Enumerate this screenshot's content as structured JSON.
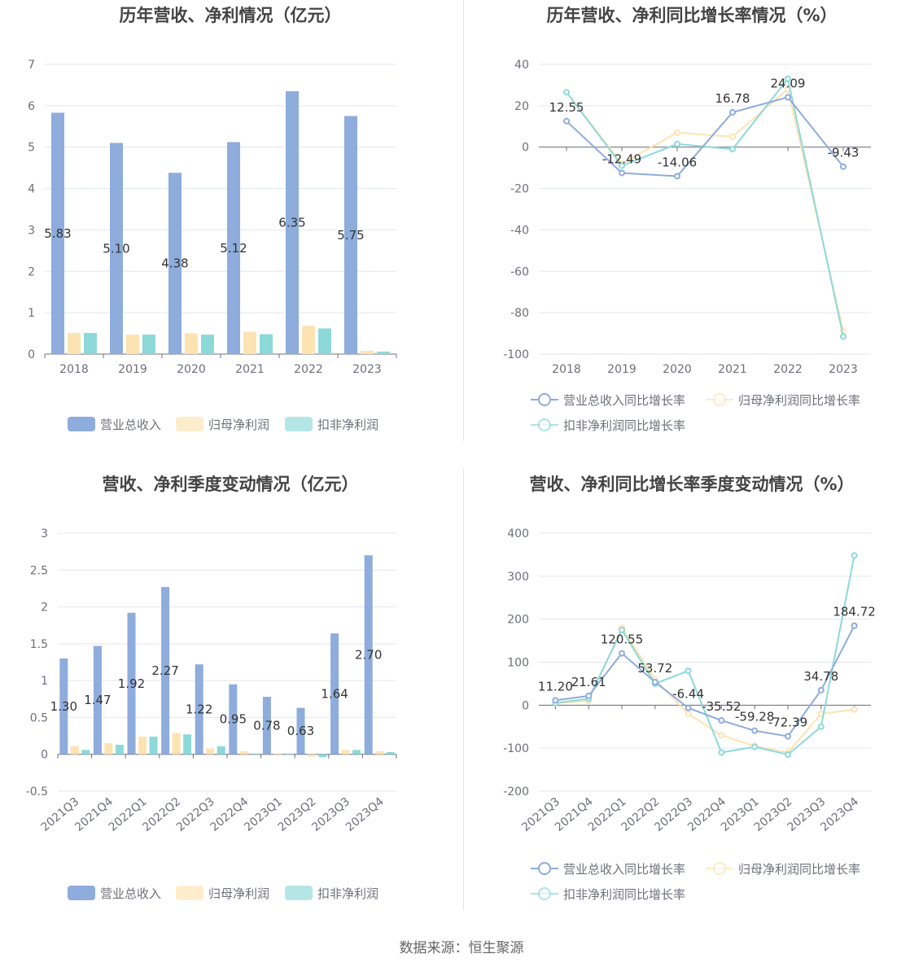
{
  "source": "数据来源：恒生聚源",
  "colors": {
    "revenue": "#8eacdc",
    "net_profit": "#fde3b2",
    "deducted_net_profit": "#8dd9d9",
    "axis_text": "#6e7079",
    "title": "#444444",
    "grid": "#e0e6f1"
  },
  "chart_data": [
    {
      "type": "bar",
      "title": "历年营收、净利情况（亿元）",
      "categories": [
        "2018",
        "2019",
        "2020",
        "2021",
        "2022",
        "2023"
      ],
      "ylim": [
        0,
        7
      ],
      "yticks": [
        0,
        1,
        2,
        3,
        4,
        5,
        6,
        7
      ],
      "series": [
        {
          "name": "营业总收入",
          "values": [
            5.83,
            5.1,
            4.38,
            5.12,
            6.35,
            5.75
          ],
          "labels": [
            "5.83",
            "5.10",
            "4.38",
            "5.12",
            "6.35",
            "5.75"
          ]
        },
        {
          "name": "归母净利润",
          "values": [
            0.51,
            0.47,
            0.5,
            0.54,
            0.68,
            0.08
          ]
        },
        {
          "name": "扣非净利润",
          "values": [
            0.51,
            0.47,
            0.47,
            0.48,
            0.62,
            0.06
          ]
        }
      ],
      "legend": "bottom"
    },
    {
      "type": "line",
      "title": "历年营收、净利同比增长率情况（%）",
      "categories": [
        "2018",
        "2019",
        "2020",
        "2021",
        "2022",
        "2023"
      ],
      "ylim": [
        -100,
        40
      ],
      "yticks": [
        -100,
        -80,
        -60,
        -40,
        -20,
        0,
        20,
        40
      ],
      "series": [
        {
          "name": "营业总收入同比增长率",
          "values": [
            12.55,
            -12.49,
            -14.06,
            16.78,
            24.09,
            -9.43
          ],
          "labels": [
            "12.55",
            "-12.49",
            "-14.06",
            "16.78",
            "24.09",
            "-9.43"
          ]
        },
        {
          "name": "归母净利润同比增长率",
          "values": [
            26.5,
            -8.0,
            7.0,
            5.0,
            28.0,
            -89.0
          ]
        },
        {
          "name": "扣非净利润同比增长率",
          "values": [
            26.5,
            -9.0,
            1.5,
            -1.0,
            33.0,
            -91.5
          ]
        }
      ],
      "legend": "bottom"
    },
    {
      "type": "bar",
      "title": "营收、净利季度变动情况（亿元）",
      "categories": [
        "2021Q3",
        "2021Q4",
        "2022Q1",
        "2022Q2",
        "2022Q3",
        "2022Q4",
        "2023Q1",
        "2023Q2",
        "2023Q3",
        "2023Q4"
      ],
      "ylim": [
        -0.5,
        3
      ],
      "yticks": [
        -0.5,
        0,
        0.5,
        1,
        1.5,
        2,
        2.5,
        3
      ],
      "series": [
        {
          "name": "营业总收入",
          "values": [
            1.3,
            1.47,
            1.92,
            2.27,
            1.22,
            0.95,
            0.78,
            0.63,
            1.64,
            2.7
          ],
          "labels": [
            "1.30",
            "1.47",
            "1.92",
            "2.27",
            "1.22",
            "0.95",
            "0.78",
            "0.63",
            "1.64",
            "2.70"
          ]
        },
        {
          "name": "归母净利润",
          "values": [
            0.11,
            0.15,
            0.24,
            0.29,
            0.08,
            0.04,
            0.01,
            -0.03,
            0.06,
            0.04
          ]
        },
        {
          "name": "扣非净利润",
          "values": [
            0.06,
            0.13,
            0.24,
            0.27,
            0.11,
            0.01,
            0.01,
            -0.04,
            0.06,
            0.03
          ]
        }
      ],
      "legend": "bottom"
    },
    {
      "type": "line",
      "title": "营收、净利同比增长率季度变动情况（%）",
      "categories": [
        "2021Q3",
        "2021Q4",
        "2022Q1",
        "2022Q2",
        "2022Q3",
        "2022Q4",
        "2023Q1",
        "2023Q2",
        "2023Q3",
        "2023Q4"
      ],
      "ylim": [
        -200,
        400
      ],
      "yticks": [
        -200,
        -100,
        0,
        100,
        200,
        300,
        400
      ],
      "series": [
        {
          "name": "营业总收入同比增长率",
          "values": [
            11.2,
            21.61,
            120.55,
            53.72,
            -6.44,
            -35.52,
            -59.28,
            -72.39,
            34.78,
            184.72
          ],
          "labels": [
            "11.20",
            "21.61",
            "120.55",
            "53.72",
            "-6.44",
            "-35.52",
            "-59.28",
            "-72.39",
            "34.78",
            "184.72"
          ]
        },
        {
          "name": "归母净利润同比增长率",
          "values": [
            5,
            10,
            180,
            60,
            -20,
            -70,
            -95,
            -110,
            -20,
            -10
          ]
        },
        {
          "name": "扣非净利润同比增长率",
          "values": [
            5,
            15,
            175,
            50,
            80,
            -110,
            -97,
            -115,
            -50,
            348
          ]
        }
      ],
      "legend": "bottom"
    }
  ]
}
